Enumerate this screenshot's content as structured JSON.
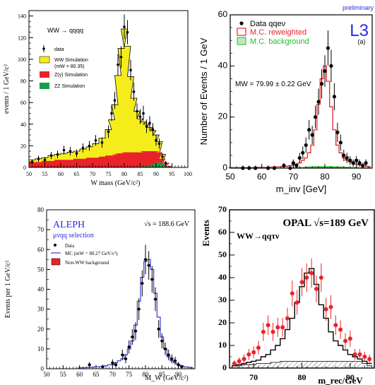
{
  "chart_data": [
    {
      "type": "bar",
      "id": "p1",
      "title": "WW → qqqq",
      "xlabel": "W mass (GeV/c²)",
      "ylabel": "events / 1 GeV/c²",
      "xlim": [
        50,
        100
      ],
      "ylim": [
        0,
        145
      ],
      "xticks": [
        50,
        55,
        60,
        65,
        70,
        75,
        80,
        85,
        90,
        95,
        100
      ],
      "yticks": [
        0,
        20,
        40,
        60,
        80,
        100,
        120,
        140
      ],
      "legend": [
        {
          "label": "data",
          "kind": "marker"
        },
        {
          "label": "WW Simulation",
          "sublabel": "(mW = 80.35)",
          "color": "#f5ec1c"
        },
        {
          "label": "Z(γ) Simulation",
          "color": "#e8232a"
        },
        {
          "label": "ZZ Simulation",
          "color": "#1a9c4a"
        }
      ],
      "x": [
        51,
        53,
        55,
        57,
        59,
        61,
        63,
        65,
        67,
        69,
        71,
        73,
        75,
        76,
        77,
        78,
        79,
        80,
        81,
        82,
        83,
        84,
        85,
        86,
        87,
        88,
        89,
        90,
        91,
        92,
        93,
        94
      ],
      "ww_total": [
        7,
        8,
        9,
        11,
        12,
        13,
        14,
        15,
        17,
        19,
        22,
        27,
        35,
        44,
        58,
        85,
        110,
        128,
        112,
        84,
        64,
        52,
        45,
        42,
        40,
        37,
        34,
        30,
        24,
        12,
        4,
        1
      ],
      "zgamma": [
        5,
        5,
        6,
        6,
        7,
        7,
        7,
        8,
        8,
        9,
        9,
        10,
        11,
        11,
        12,
        13,
        13,
        14,
        14,
        14,
        14,
        14,
        14,
        15,
        15,
        15,
        15,
        15,
        14,
        8,
        3,
        1
      ],
      "zz": [
        0,
        0,
        0,
        0,
        0,
        0,
        0,
        0,
        0,
        0,
        0,
        0,
        0,
        0,
        0,
        0,
        0,
        0,
        0,
        0,
        0,
        0,
        0,
        1,
        1,
        2,
        3,
        4,
        5,
        3,
        1,
        0
      ],
      "data": [
        [
          51,
          5
        ],
        [
          53,
          8
        ],
        [
          55,
          7
        ],
        [
          57,
          11
        ],
        [
          59,
          12
        ],
        [
          61,
          16
        ],
        [
          63,
          15
        ],
        [
          65,
          13
        ],
        [
          67,
          18
        ],
        [
          69,
          20
        ],
        [
          71,
          25
        ],
        [
          73,
          23
        ],
        [
          75,
          33
        ],
        [
          76,
          50
        ],
        [
          77,
          62
        ],
        [
          78,
          95
        ],
        [
          79,
          102
        ],
        [
          80,
          130
        ],
        [
          81,
          125
        ],
        [
          82,
          90
        ],
        [
          83,
          70
        ],
        [
          84,
          52
        ],
        [
          85,
          47
        ],
        [
          86,
          50
        ],
        [
          87,
          38
        ],
        [
          88,
          41
        ],
        [
          89,
          35
        ],
        [
          90,
          25
        ],
        [
          91,
          22
        ],
        [
          92,
          10
        ],
        [
          93,
          4
        ]
      ]
    },
    {
      "type": "bar",
      "id": "p2",
      "title": "L3",
      "subtitle": "(a)",
      "label_preliminary": "preliminary",
      "annotation": "MW = 79.99 ± 0.22 GeV",
      "xlabel": "m_inv [GeV]",
      "ylabel": "Number of Events / 1 GeV",
      "xlim": [
        50,
        95
      ],
      "ylim": [
        0,
        60
      ],
      "xticks": [
        50,
        60,
        70,
        80,
        90
      ],
      "yticks": [
        0,
        20,
        40,
        60
      ],
      "legend": [
        {
          "label": "Data qqeν",
          "kind": "marker"
        },
        {
          "label": "M.C. reweighted",
          "color": "#e8232a"
        },
        {
          "label": "M.C. background",
          "color": "#22c022"
        }
      ],
      "x": [
        50,
        51,
        52,
        53,
        54,
        55,
        56,
        57,
        58,
        59,
        60,
        61,
        62,
        63,
        64,
        65,
        66,
        67,
        68,
        69,
        70,
        71,
        72,
        73,
        74,
        75,
        76,
        77,
        78,
        79,
        80,
        81,
        82,
        83,
        84,
        85,
        86,
        87,
        88,
        89,
        90,
        91,
        92,
        93,
        94
      ],
      "mc": [
        0.2,
        0.2,
        0.2,
        0.2,
        0.2,
        0.2,
        0.2,
        0.2,
        0.3,
        0.3,
        0.3,
        0.3,
        0.3,
        0.4,
        0.4,
        0.5,
        0.5,
        0.6,
        0.8,
        1,
        1.2,
        1.5,
        2,
        3,
        4,
        6,
        9,
        15,
        25,
        35,
        40,
        34,
        24,
        15,
        9,
        6,
        4,
        3,
        2.5,
        2,
        1.6,
        1.2,
        1,
        0.8,
        0.6
      ],
      "bkg": [
        0,
        0,
        0,
        0,
        0,
        0,
        0,
        0,
        0,
        0,
        0,
        0,
        0,
        0,
        0,
        0,
        0,
        0,
        0,
        0,
        0.2,
        0.2,
        0.3,
        0.3,
        0.4,
        0.5,
        0.5,
        0.6,
        0.6,
        0.6,
        0.6,
        0.6,
        0.6,
        0.5,
        0.5,
        0.5,
        0.4,
        0.4,
        0.3,
        0.3,
        0.3,
        0.2,
        0.2,
        0.2,
        0.2
      ],
      "data": [
        [
          54,
          0
        ],
        [
          56,
          0
        ],
        [
          58,
          0
        ],
        [
          62,
          0
        ],
        [
          64,
          0
        ],
        [
          67,
          1
        ],
        [
          69,
          0
        ],
        [
          70,
          2
        ],
        [
          71,
          1
        ],
        [
          72,
          4
        ],
        [
          73,
          6
        ],
        [
          74,
          9
        ],
        [
          75,
          15
        ],
        [
          76,
          13
        ],
        [
          77,
          20
        ],
        [
          78,
          26
        ],
        [
          79,
          33
        ],
        [
          80,
          38
        ],
        [
          81,
          47
        ],
        [
          82,
          40
        ],
        [
          83,
          28
        ],
        [
          84,
          14
        ],
        [
          85,
          10
        ],
        [
          86,
          5
        ],
        [
          87,
          4
        ],
        [
          88,
          3
        ],
        [
          89,
          2
        ],
        [
          90,
          3
        ],
        [
          91,
          2
        ],
        [
          92,
          1
        ],
        [
          93,
          2
        ]
      ]
    },
    {
      "type": "line",
      "id": "p3",
      "title": "ALEPH",
      "subtitle": "μνqq selection",
      "annotation": "√s = 188.6 GeV",
      "xlabel": "M_W (GeV/c²)",
      "ylabel": "Events per 1 GeV/c²",
      "xlim": [
        50,
        95
      ],
      "ylim": [
        0,
        80
      ],
      "xticks": [
        50,
        55,
        60,
        65,
        70,
        75,
        80,
        85,
        90
      ],
      "yticks": [
        0,
        10,
        20,
        30,
        40,
        50,
        60,
        70,
        80
      ],
      "legend": [
        {
          "label": "Data",
          "kind": "marker"
        },
        {
          "label": "MC (mW = 80.27 GeV/c²)",
          "color": "#3a3ad8"
        },
        {
          "label": "Non-WW background",
          "color": "#e8232a"
        }
      ],
      "x": [
        60,
        61,
        62,
        63,
        64,
        65,
        66,
        67,
        68,
        69,
        70,
        71,
        72,
        73,
        74,
        75,
        76,
        77,
        78,
        79,
        80,
        81,
        82,
        83,
        84,
        85,
        86,
        87,
        88,
        89,
        90,
        91,
        92,
        93,
        94
      ],
      "mc": [
        0.5,
        0.5,
        0.6,
        0.7,
        0.8,
        1,
        1,
        1.2,
        1.5,
        2,
        2,
        3,
        4,
        5,
        7,
        10,
        14,
        22,
        34,
        46,
        54,
        55,
        50,
        38,
        26,
        16,
        10,
        6,
        4,
        3,
        2,
        1.5,
        1,
        0.8,
        0.5
      ],
      "data": [
        [
          63,
          2
        ],
        [
          67,
          1
        ],
        [
          70,
          3
        ],
        [
          71,
          2
        ],
        [
          73,
          7
        ],
        [
          74,
          5
        ],
        [
          75,
          11
        ],
        [
          76,
          16
        ],
        [
          77,
          19
        ],
        [
          78,
          30
        ],
        [
          79,
          43
        ],
        [
          80,
          55
        ],
        [
          81,
          52
        ],
        [
          82,
          45
        ],
        [
          83,
          35
        ],
        [
          84,
          20
        ],
        [
          85,
          14
        ],
        [
          86,
          10
        ],
        [
          87,
          7
        ],
        [
          88,
          5
        ],
        [
          89,
          4
        ],
        [
          90,
          2
        ],
        [
          91,
          1
        ]
      ]
    },
    {
      "type": "bar",
      "id": "p4",
      "title": "OPAL √s=189 GeV",
      "subtitle": "WW→qqτν",
      "xlabel": "m_rec/GeV",
      "ylabel": "Events",
      "xlim": [
        65,
        95
      ],
      "ylim": [
        0,
        70
      ],
      "xticks": [
        70,
        80,
        90
      ],
      "yticks": [
        0,
        10,
        20,
        30,
        40,
        50,
        60,
        70
      ],
      "x": [
        66,
        67,
        68,
        69,
        70,
        71,
        72,
        73,
        74,
        75,
        76,
        77,
        78,
        79,
        80,
        81,
        82,
        83,
        84,
        85,
        86,
        87,
        88,
        89,
        90,
        91,
        92,
        93,
        94
      ],
      "mc": [
        1,
        1.5,
        2,
        2.5,
        3,
        3.5,
        5,
        6,
        8,
        10,
        13,
        17,
        22,
        29,
        36,
        42,
        44,
        37,
        28,
        22,
        16,
        12,
        10,
        8,
        6,
        5,
        4,
        3,
        2
      ],
      "bkg": [
        1,
        1,
        1.5,
        1.5,
        1.5,
        2,
        2,
        2,
        2.5,
        2.5,
        3,
        3,
        3,
        3,
        3,
        3,
        3,
        3,
        3,
        3,
        3,
        3,
        3,
        3,
        3,
        3,
        3,
        2,
        1
      ],
      "data": [
        [
          66,
          2
        ],
        [
          67,
          3
        ],
        [
          68,
          4
        ],
        [
          69,
          6
        ],
        [
          70,
          7
        ],
        [
          71,
          9
        ],
        [
          72,
          16
        ],
        [
          73,
          19
        ],
        [
          74,
          16
        ],
        [
          75,
          18
        ],
        [
          76,
          18
        ],
        [
          77,
          22
        ],
        [
          78,
          33
        ],
        [
          79,
          29
        ],
        [
          80,
          38
        ],
        [
          81,
          40
        ],
        [
          82,
          42
        ],
        [
          83,
          35
        ],
        [
          84,
          40
        ],
        [
          85,
          26
        ],
        [
          86,
          27
        ],
        [
          87,
          19
        ],
        [
          88,
          17
        ],
        [
          89,
          12
        ],
        [
          90,
          13
        ],
        [
          91,
          6
        ],
        [
          92,
          6
        ],
        [
          93,
          5
        ],
        [
          94,
          4
        ]
      ]
    }
  ]
}
